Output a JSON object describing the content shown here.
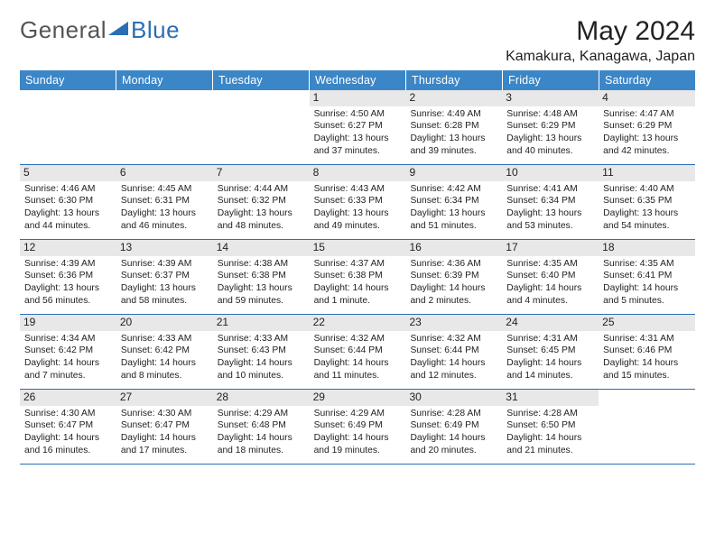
{
  "logo": {
    "text1": "General",
    "text2": "Blue"
  },
  "title": "May 2024",
  "location": "Kamakura, Kanagawa, Japan",
  "colors": {
    "header_bg": "#3b86c7",
    "header_text": "#ffffff",
    "row_border": "#2a6fb5",
    "daynum_bg": "#e8e8e8",
    "body_text": "#222222",
    "logo_gray": "#555555",
    "logo_blue": "#2a6fb5"
  },
  "day_names": [
    "Sunday",
    "Monday",
    "Tuesday",
    "Wednesday",
    "Thursday",
    "Friday",
    "Saturday"
  ],
  "weeks": [
    [
      null,
      null,
      null,
      {
        "d": "1",
        "sr": "4:50 AM",
        "ss": "6:27 PM",
        "dl": "13 hours and 37 minutes."
      },
      {
        "d": "2",
        "sr": "4:49 AM",
        "ss": "6:28 PM",
        "dl": "13 hours and 39 minutes."
      },
      {
        "d": "3",
        "sr": "4:48 AM",
        "ss": "6:29 PM",
        "dl": "13 hours and 40 minutes."
      },
      {
        "d": "4",
        "sr": "4:47 AM",
        "ss": "6:29 PM",
        "dl": "13 hours and 42 minutes."
      }
    ],
    [
      {
        "d": "5",
        "sr": "4:46 AM",
        "ss": "6:30 PM",
        "dl": "13 hours and 44 minutes."
      },
      {
        "d": "6",
        "sr": "4:45 AM",
        "ss": "6:31 PM",
        "dl": "13 hours and 46 minutes."
      },
      {
        "d": "7",
        "sr": "4:44 AM",
        "ss": "6:32 PM",
        "dl": "13 hours and 48 minutes."
      },
      {
        "d": "8",
        "sr": "4:43 AM",
        "ss": "6:33 PM",
        "dl": "13 hours and 49 minutes."
      },
      {
        "d": "9",
        "sr": "4:42 AM",
        "ss": "6:34 PM",
        "dl": "13 hours and 51 minutes."
      },
      {
        "d": "10",
        "sr": "4:41 AM",
        "ss": "6:34 PM",
        "dl": "13 hours and 53 minutes."
      },
      {
        "d": "11",
        "sr": "4:40 AM",
        "ss": "6:35 PM",
        "dl": "13 hours and 54 minutes."
      }
    ],
    [
      {
        "d": "12",
        "sr": "4:39 AM",
        "ss": "6:36 PM",
        "dl": "13 hours and 56 minutes."
      },
      {
        "d": "13",
        "sr": "4:39 AM",
        "ss": "6:37 PM",
        "dl": "13 hours and 58 minutes."
      },
      {
        "d": "14",
        "sr": "4:38 AM",
        "ss": "6:38 PM",
        "dl": "13 hours and 59 minutes."
      },
      {
        "d": "15",
        "sr": "4:37 AM",
        "ss": "6:38 PM",
        "dl": "14 hours and 1 minute."
      },
      {
        "d": "16",
        "sr": "4:36 AM",
        "ss": "6:39 PM",
        "dl": "14 hours and 2 minutes."
      },
      {
        "d": "17",
        "sr": "4:35 AM",
        "ss": "6:40 PM",
        "dl": "14 hours and 4 minutes."
      },
      {
        "d": "18",
        "sr": "4:35 AM",
        "ss": "6:41 PM",
        "dl": "14 hours and 5 minutes."
      }
    ],
    [
      {
        "d": "19",
        "sr": "4:34 AM",
        "ss": "6:42 PM",
        "dl": "14 hours and 7 minutes."
      },
      {
        "d": "20",
        "sr": "4:33 AM",
        "ss": "6:42 PM",
        "dl": "14 hours and 8 minutes."
      },
      {
        "d": "21",
        "sr": "4:33 AM",
        "ss": "6:43 PM",
        "dl": "14 hours and 10 minutes."
      },
      {
        "d": "22",
        "sr": "4:32 AM",
        "ss": "6:44 PM",
        "dl": "14 hours and 11 minutes."
      },
      {
        "d": "23",
        "sr": "4:32 AM",
        "ss": "6:44 PM",
        "dl": "14 hours and 12 minutes."
      },
      {
        "d": "24",
        "sr": "4:31 AM",
        "ss": "6:45 PM",
        "dl": "14 hours and 14 minutes."
      },
      {
        "d": "25",
        "sr": "4:31 AM",
        "ss": "6:46 PM",
        "dl": "14 hours and 15 minutes."
      }
    ],
    [
      {
        "d": "26",
        "sr": "4:30 AM",
        "ss": "6:47 PM",
        "dl": "14 hours and 16 minutes."
      },
      {
        "d": "27",
        "sr": "4:30 AM",
        "ss": "6:47 PM",
        "dl": "14 hours and 17 minutes."
      },
      {
        "d": "28",
        "sr": "4:29 AM",
        "ss": "6:48 PM",
        "dl": "14 hours and 18 minutes."
      },
      {
        "d": "29",
        "sr": "4:29 AM",
        "ss": "6:49 PM",
        "dl": "14 hours and 19 minutes."
      },
      {
        "d": "30",
        "sr": "4:28 AM",
        "ss": "6:49 PM",
        "dl": "14 hours and 20 minutes."
      },
      {
        "d": "31",
        "sr": "4:28 AM",
        "ss": "6:50 PM",
        "dl": "14 hours and 21 minutes."
      },
      null
    ]
  ],
  "labels": {
    "sunrise": "Sunrise:",
    "sunset": "Sunset:",
    "daylight": "Daylight:"
  }
}
